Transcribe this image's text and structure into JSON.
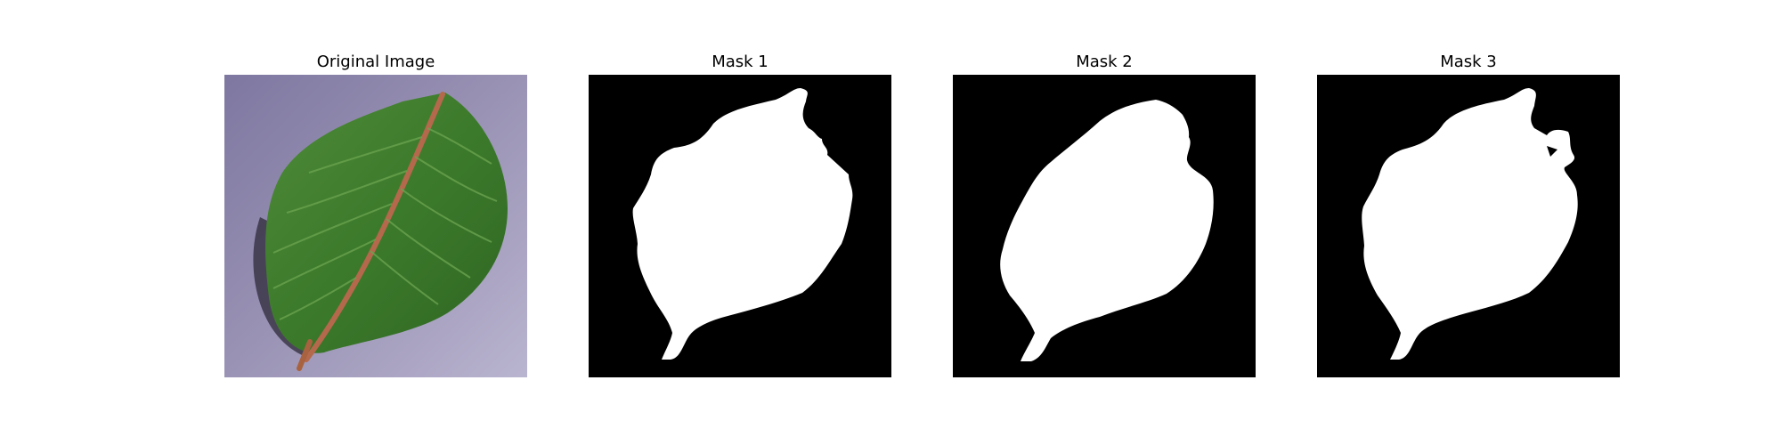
{
  "figure": {
    "panels": [
      {
        "title": "Original Image",
        "image": "leaf-photo"
      },
      {
        "title": "Mask 1",
        "image": "binary-mask"
      },
      {
        "title": "Mask 2",
        "image": "binary-mask"
      },
      {
        "title": "Mask 3",
        "image": "binary-mask"
      }
    ]
  },
  "colors": {
    "mask_background": "#000000",
    "mask_foreground": "#ffffff",
    "leaf_green": "#3f7a2d",
    "photo_background": "#8e88a8"
  }
}
